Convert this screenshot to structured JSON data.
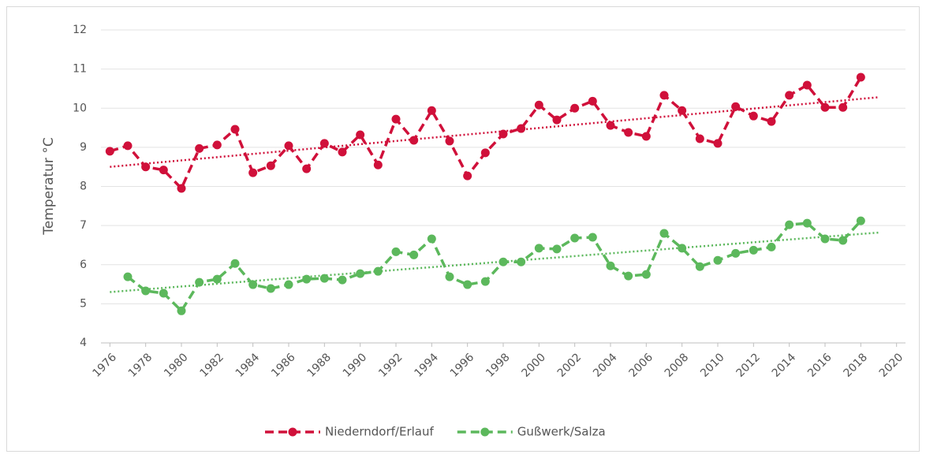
{
  "chart_data": {
    "type": "line",
    "y_label": "Temperatur °C",
    "x": [
      1976,
      1977,
      1978,
      1979,
      1980,
      1981,
      1982,
      1983,
      1984,
      1985,
      1986,
      1987,
      1988,
      1989,
      1990,
      1991,
      1992,
      1993,
      1994,
      1995,
      1996,
      1997,
      1998,
      1999,
      2000,
      2001,
      2002,
      2003,
      2004,
      2005,
      2006,
      2007,
      2008,
      2009,
      2010,
      2011,
      2012,
      2013,
      2014,
      2015,
      2016,
      2017,
      2018
    ],
    "series": [
      {
        "name": "Niederndorf/Erlauf",
        "color": "#d0103a",
        "values": [
          8.9,
          9.04,
          8.5,
          8.42,
          7.95,
          8.97,
          9.06,
          9.46,
          8.35,
          8.53,
          9.04,
          8.45,
          9.1,
          8.88,
          9.32,
          8.55,
          9.72,
          9.18,
          9.94,
          9.16,
          8.27,
          8.86,
          9.34,
          9.48,
          10.08,
          9.7,
          10.0,
          10.18,
          9.56,
          9.38,
          9.28,
          10.33,
          9.94,
          9.22,
          9.1,
          10.04,
          9.8,
          9.66,
          10.33,
          10.59,
          10.02,
          10.02,
          10.79
        ],
        "trend": {
          "x": [
            1976,
            2019
          ],
          "values": [
            8.5,
            10.28
          ]
        }
      },
      {
        "name": "Gußwerk/Salza",
        "color": "#5cb85c",
        "values": [
          null,
          5.69,
          5.33,
          5.27,
          4.82,
          5.55,
          5.63,
          6.03,
          5.49,
          5.39,
          5.49,
          5.63,
          5.65,
          5.61,
          5.77,
          5.83,
          6.33,
          6.25,
          6.66,
          5.69,
          5.49,
          5.57,
          6.07,
          6.07,
          6.42,
          6.4,
          6.68,
          6.7,
          5.97,
          5.71,
          5.75,
          6.8,
          6.42,
          5.95,
          6.11,
          6.29,
          6.37,
          6.45,
          7.02,
          7.06,
          6.66,
          6.62,
          7.12
        ],
        "trend": {
          "x": [
            1976,
            2019
          ],
          "values": [
            5.3,
            6.82
          ]
        }
      }
    ],
    "xlim": [
      1975.5,
      2020.5
    ],
    "xticks": [
      1976,
      1978,
      1980,
      1982,
      1984,
      1986,
      1988,
      1990,
      1992,
      1994,
      1996,
      1998,
      2000,
      2002,
      2004,
      2006,
      2008,
      2010,
      2012,
      2014,
      2016,
      2018,
      2020
    ],
    "ylim": [
      4,
      12
    ],
    "yticks": [
      4,
      5,
      6,
      7,
      8,
      9,
      10,
      11,
      12
    ],
    "grid": true,
    "legend": "bottom"
  }
}
